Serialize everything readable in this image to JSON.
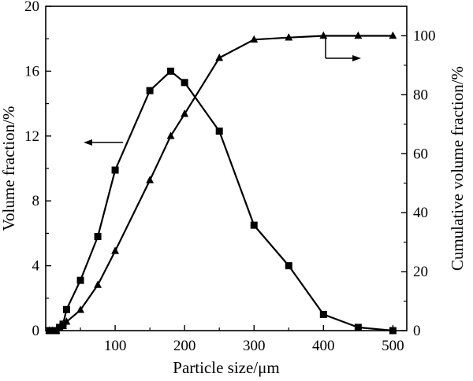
{
  "chart_data": {
    "type": "line",
    "xlabel": "Particle size/μm",
    "ylabel": "Volume fraction/%",
    "y2label": "Cumulative volume fraction/%",
    "xlim": [
      0,
      520
    ],
    "ylim": [
      0,
      20
    ],
    "y2lim": [
      0,
      110
    ],
    "xticks": [
      100,
      200,
      300,
      400,
      500
    ],
    "yticks": [
      0,
      4,
      8,
      12,
      16,
      20
    ],
    "y2ticks": [
      0,
      20,
      40,
      60,
      80,
      100
    ],
    "grid": false,
    "legend": "none",
    "series": [
      {
        "axis": "left",
        "marker": "square",
        "x": [
          5,
          10,
          15,
          20,
          25,
          30,
          50,
          75,
          100,
          150,
          180,
          200,
          250,
          300,
          350,
          400,
          450,
          500
        ],
        "y": [
          0.0,
          0.0,
          0.0,
          0.2,
          0.4,
          1.3,
          3.1,
          5.8,
          9.9,
          14.8,
          16.0,
          15.3,
          12.3,
          6.5,
          4.0,
          1.0,
          0.2,
          0.0
        ]
      },
      {
        "axis": "right",
        "marker": "triangle",
        "x": [
          5,
          10,
          15,
          20,
          25,
          30,
          50,
          75,
          100,
          150,
          180,
          200,
          250,
          300,
          350,
          400,
          450,
          500
        ],
        "y": [
          0.0,
          0.0,
          0.0,
          1.0,
          1.5,
          3.0,
          7.0,
          15.5,
          27.0,
          51.0,
          66.0,
          73.5,
          92.5,
          98.7,
          99.4,
          100.0,
          100.0,
          100.0
        ]
      }
    ],
    "annotations": [
      {
        "type": "arrow",
        "direction": "left",
        "points_to": "left"
      },
      {
        "type": "arrow",
        "direction": "right",
        "points_to": "right"
      }
    ]
  }
}
